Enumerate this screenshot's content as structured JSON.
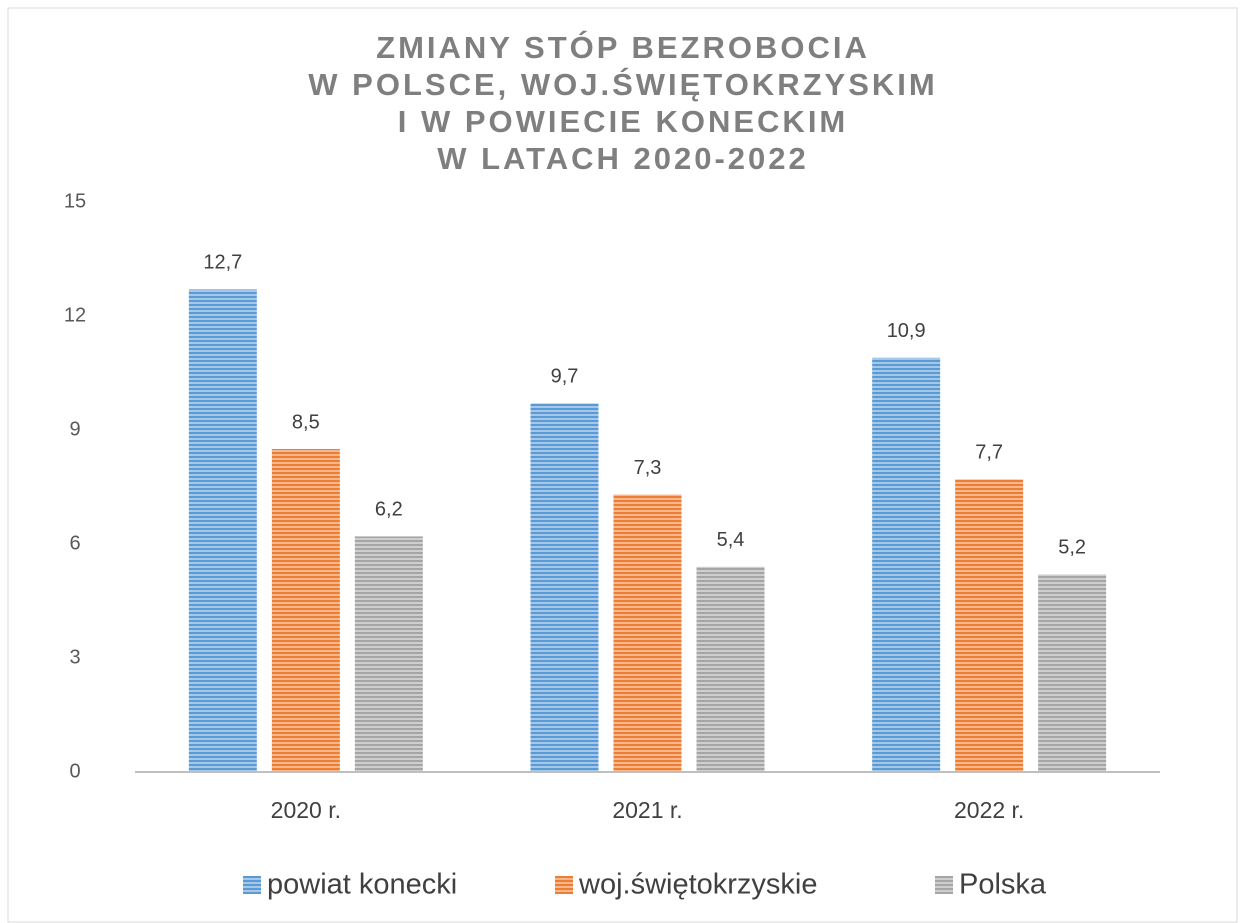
{
  "chart_data": {
    "type": "bar",
    "title": [
      "ZMIANY STÓP BEZROBOCIA",
      "W POLSCE, WOJ.ŚWIĘTOKRZYSKIM",
      "I W POWIECIE KONECKIM",
      "W LATACH 2020-2022"
    ],
    "categories": [
      "2020 r.",
      "2021 r.",
      "2022 r."
    ],
    "series": [
      {
        "name": "powiat konecki",
        "color": "#5b9bd5",
        "values": [
          12.7,
          9.7,
          10.9
        ],
        "value_labels": [
          "12,7",
          "9,7",
          "10,9"
        ]
      },
      {
        "name": "woj.świętokrzyskie",
        "color": "#ed7d31",
        "values": [
          8.5,
          7.3,
          7.7
        ],
        "value_labels": [
          "8,5",
          "7,3",
          "7,7"
        ]
      },
      {
        "name": "Polska",
        "color": "#a5a5a5",
        "values": [
          6.2,
          5.4,
          5.2
        ],
        "value_labels": [
          "6,2",
          "5,4",
          "5,2"
        ]
      }
    ],
    "ylim": [
      0,
      15
    ],
    "yticks": [
      0,
      3,
      6,
      9,
      12,
      15
    ],
    "grid": false,
    "legend": "bottom"
  }
}
